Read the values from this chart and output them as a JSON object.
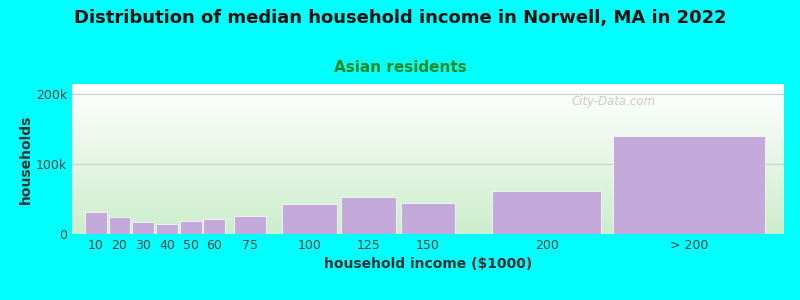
{
  "title": "Distribution of median household income in Norwell, MA in 2022",
  "subtitle": "Asian residents",
  "xlabel": "household income ($1000)",
  "ylabel": "households",
  "background_color": "#00FFFF",
  "plot_bg_top": "#FFFFFF",
  "plot_bg_bottom": "#CCEECC",
  "bar_color": "#C4AADB",
  "bar_edge_color": "#FFFFFF",
  "grid_color": "#CCCCCC",
  "categories": [
    "10",
    "20",
    "30",
    "40",
    "50",
    "60",
    "75",
    "100",
    "125",
    "150",
    "200",
    "> 200"
  ],
  "x_centers": [
    10,
    20,
    30,
    40,
    50,
    60,
    75,
    100,
    125,
    150,
    200,
    260
  ],
  "x_widths": [
    10,
    10,
    10,
    10,
    10,
    10,
    15,
    25,
    25,
    25,
    50,
    70
  ],
  "values": [
    32000,
    24000,
    17000,
    14000,
    19000,
    22000,
    26000,
    43000,
    53000,
    45000,
    62000,
    140000
  ],
  "yticks": [
    0,
    100000,
    200000
  ],
  "ytick_labels": [
    "0",
    "100k",
    "200k"
  ],
  "ylim": [
    0,
    215000
  ],
  "xlim": [
    0,
    300
  ],
  "title_fontsize": 13,
  "subtitle_fontsize": 11,
  "axis_label_fontsize": 10,
  "tick_fontsize": 9,
  "watermark": "City-Data.com"
}
